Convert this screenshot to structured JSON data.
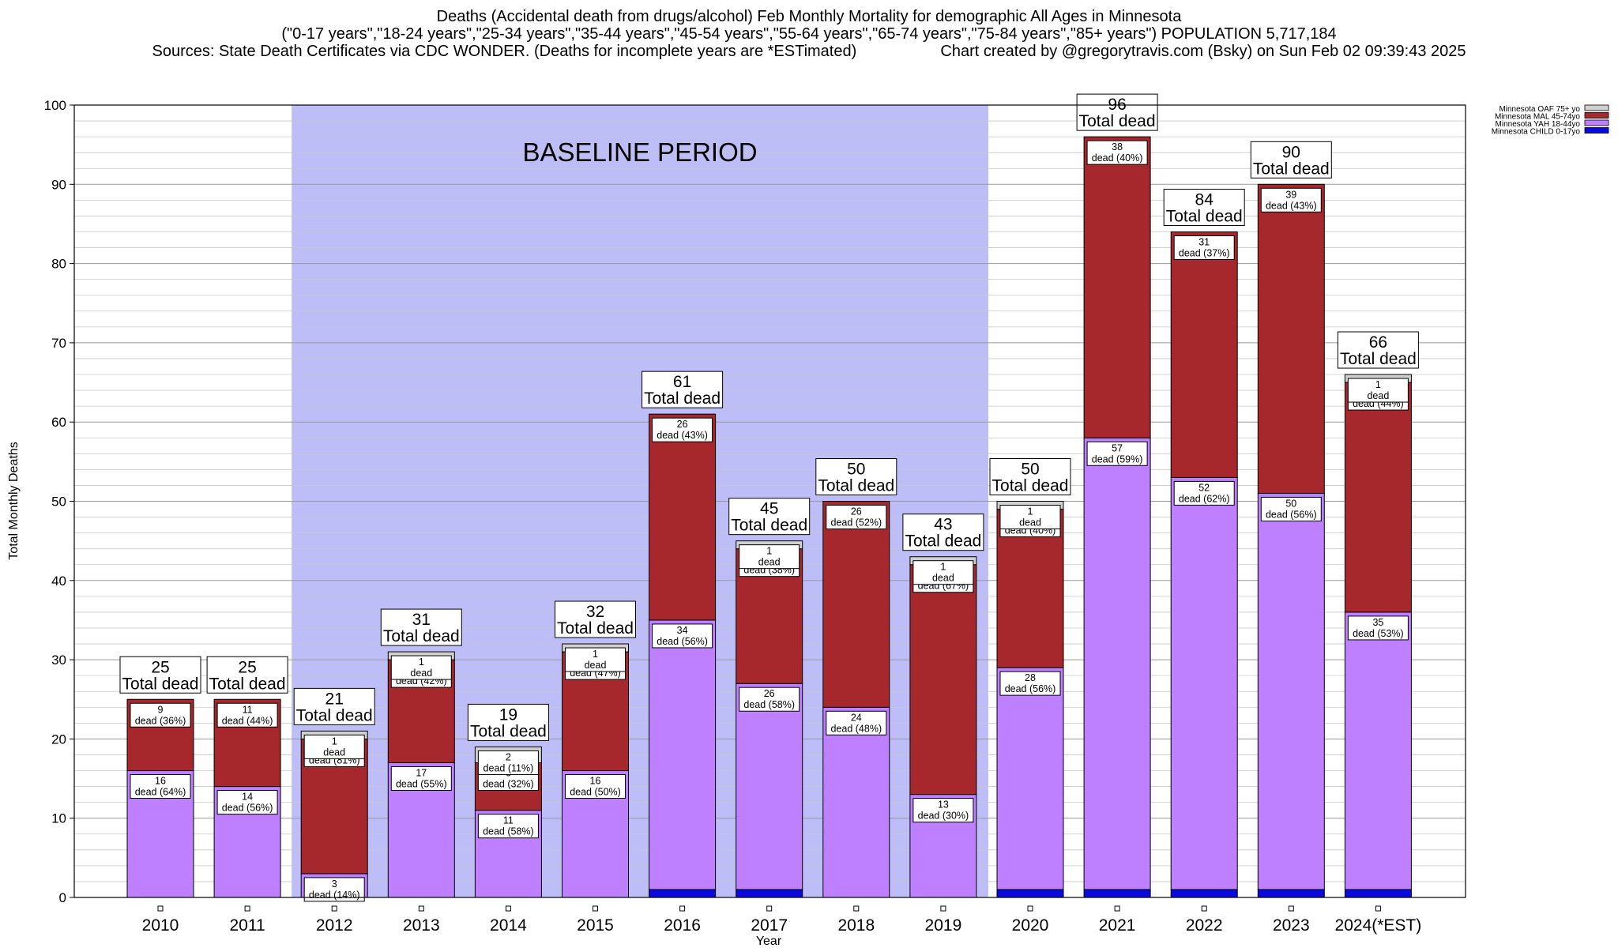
{
  "header": {
    "title": "Deaths (Accidental death from drugs/alcohol) Feb Monthly Mortality for demographic All Ages in Minnesota",
    "subtitle": "(\"0-17 years\",\"18-24 years\",\"25-34 years\",\"35-44 years\",\"45-54 years\",\"55-64 years\",\"65-74 years\",\"75-84 years\",\"85+ years\") POPULATION 5,717,184",
    "sources": "Sources: State Death Certificates via CDC WONDER. (Deaths for incomplete years are *ESTimated)",
    "credit": "Chart created by @gregorytravis.com (Bsky) on Sun Feb 02 09:39:43 2025"
  },
  "chart_data": {
    "type": "bar",
    "stacked": true,
    "xlabel": "Year",
    "ylabel": "Total Monthly Deaths",
    "ylim": [
      0,
      100
    ],
    "yticks": [
      0,
      10,
      20,
      30,
      40,
      50,
      60,
      70,
      80,
      90,
      100
    ],
    "minor_grid_step": 2,
    "grid": true,
    "legend_position": "top-right",
    "baseline_label": "BASELINE PERIOD",
    "baseline_range": [
      "2012",
      "2019"
    ],
    "baseline_color": "#bdbdf8",
    "total_suffix": "Total dead",
    "dead_word": "dead",
    "categories": [
      "2010",
      "2011",
      "2012",
      "2013",
      "2014",
      "2015",
      "2016",
      "2017",
      "2018",
      "2019",
      "2020",
      "2021",
      "2022",
      "2023",
      "2024(*EST)"
    ],
    "totals": [
      25,
      25,
      21,
      31,
      19,
      32,
      61,
      45,
      50,
      43,
      50,
      96,
      84,
      90,
      66
    ],
    "series": [
      {
        "name": "Minnesota CHILD 0-17yo",
        "color": "#0a0ae0",
        "values": [
          0,
          0,
          0,
          0,
          0,
          0,
          1,
          1,
          0,
          0,
          1,
          1,
          1,
          1,
          1
        ],
        "pct": [
          null,
          null,
          null,
          null,
          null,
          null,
          null,
          null,
          null,
          null,
          null,
          null,
          null,
          null,
          null
        ]
      },
      {
        "name": "Minnesota YAH 18-44yo",
        "color": "#bf80ff",
        "values": [
          16,
          14,
          3,
          17,
          11,
          16,
          34,
          26,
          24,
          13,
          28,
          57,
          52,
          50,
          35
        ],
        "pct": [
          64,
          56,
          14,
          55,
          58,
          50,
          56,
          58,
          48,
          30,
          56,
          59,
          62,
          56,
          53
        ]
      },
      {
        "name": "Minnesota MAL 45-74yo",
        "color": "#a6282c",
        "values": [
          9,
          11,
          17,
          13,
          6,
          15,
          26,
          17,
          26,
          29,
          20,
          38,
          31,
          39,
          29
        ],
        "pct": [
          36,
          44,
          81,
          42,
          32,
          47,
          43,
          38,
          52,
          67,
          40,
          40,
          37,
          43,
          44
        ]
      },
      {
        "name": "Minnesota OAF 75+ yo",
        "color": "#d0d0d0",
        "values": [
          0,
          0,
          1,
          1,
          2,
          1,
          0,
          1,
          0,
          1,
          1,
          0,
          0,
          0,
          1
        ],
        "pct": [
          null,
          null,
          null,
          null,
          11,
          null,
          null,
          null,
          null,
          null,
          null,
          null,
          null,
          null,
          null
        ]
      }
    ]
  }
}
